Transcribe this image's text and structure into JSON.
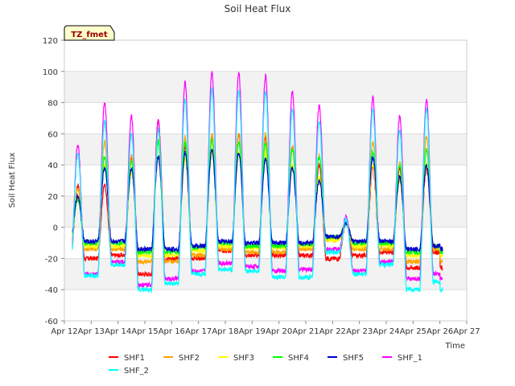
{
  "chart_data": {
    "type": "line",
    "title": "Soil Heat Flux",
    "xlabel": "Time",
    "ylabel": "Soil Heat Flux",
    "ylim": [
      -60,
      120
    ],
    "yticks": [
      -60,
      -40,
      -20,
      0,
      20,
      40,
      60,
      80,
      100,
      120
    ],
    "xlim": [
      0,
      15
    ],
    "x_ticks": [
      0,
      1,
      2,
      3,
      4,
      5,
      6,
      7,
      8,
      9,
      10,
      11,
      12,
      13,
      14,
      15
    ],
    "x_tick_labels": [
      "Apr 12",
      "Apr 13",
      "Apr 14",
      "Apr 15",
      "Apr 16",
      "Apr 17",
      "Apr 18",
      "Apr 19",
      "Apr 20",
      "Apr 21",
      "Apr 22",
      "Apr 23",
      "Apr 24",
      "Apr 25",
      "Apr 26",
      "Apr 27"
    ],
    "data_range": [
      0.3,
      14.1
    ],
    "grid": true,
    "annotation": "TZ_fmet",
    "legend_position": "bottom",
    "series": [
      {
        "name": "SHF1",
        "color": "#ff0000",
        "peaks": [
          27,
          27,
          45,
          68,
          52,
          58,
          60,
          58,
          52,
          40,
          3,
          38,
          38,
          38
        ],
        "troughs": [
          -20,
          -20,
          -18,
          -30,
          -20,
          -20,
          -15,
          -18,
          -18,
          -18,
          -20,
          -18,
          -16,
          -26,
          -16
        ]
      },
      {
        "name": "SHF2",
        "color": "#ffa500",
        "peaks": [
          25,
          55,
          46,
          56,
          58,
          60,
          60,
          60,
          52,
          46,
          3,
          55,
          42,
          58
        ],
        "troughs": [
          -12,
          -14,
          -14,
          -22,
          -22,
          -18,
          -14,
          -16,
          -16,
          -14,
          -8,
          -14,
          -14,
          -22,
          -14
        ]
      },
      {
        "name": "SHF3",
        "color": "#ffff00",
        "peaks": [
          20,
          40,
          35,
          45,
          44,
          48,
          48,
          48,
          40,
          32,
          2,
          40,
          30,
          40
        ],
        "troughs": [
          -10,
          -12,
          -12,
          -18,
          -18,
          -15,
          -12,
          -13,
          -13,
          -12,
          -8,
          -12,
          -12,
          -18,
          -12
        ]
      },
      {
        "name": "SHF4",
        "color": "#00ff00",
        "peaks": [
          18,
          45,
          42,
          55,
          54,
          56,
          55,
          54,
          50,
          45,
          3,
          48,
          40,
          50
        ],
        "troughs": [
          -8,
          -10,
          -10,
          -16,
          -16,
          -13,
          -10,
          -12,
          -12,
          -11,
          -6,
          -10,
          -10,
          -16,
          -12
        ]
      },
      {
        "name": "SHF5",
        "color": "#0000cc",
        "peaks": [
          20,
          38,
          38,
          45,
          48,
          50,
          48,
          44,
          38,
          30,
          2,
          45,
          32,
          40
        ],
        "troughs": [
          -8,
          -9,
          -9,
          -14,
          -14,
          -12,
          -9,
          -10,
          -10,
          -10,
          -6,
          -9,
          -9,
          -14,
          -12
        ]
      },
      {
        "name": "SHF_1",
        "color": "#ff00ff",
        "peaks": [
          53,
          80,
          71,
          68,
          93,
          100,
          99,
          97,
          87,
          78,
          7,
          83,
          71,
          82
        ],
        "troughs": [
          -22,
          -30,
          -22,
          -37,
          -33,
          -28,
          -23,
          -25,
          -28,
          -27,
          -14,
          -28,
          -22,
          -33,
          -30
        ]
      },
      {
        "name": "SHF_2",
        "color": "#00ffff",
        "peaks": [
          47,
          68,
          60,
          63,
          82,
          88,
          88,
          87,
          76,
          68,
          5,
          75,
          62,
          76
        ],
        "troughs": [
          -24,
          -31,
          -24,
          -40,
          -36,
          -30,
          -27,
          -28,
          -32,
          -32,
          -16,
          -30,
          -24,
          -40,
          -35
        ]
      }
    ]
  }
}
